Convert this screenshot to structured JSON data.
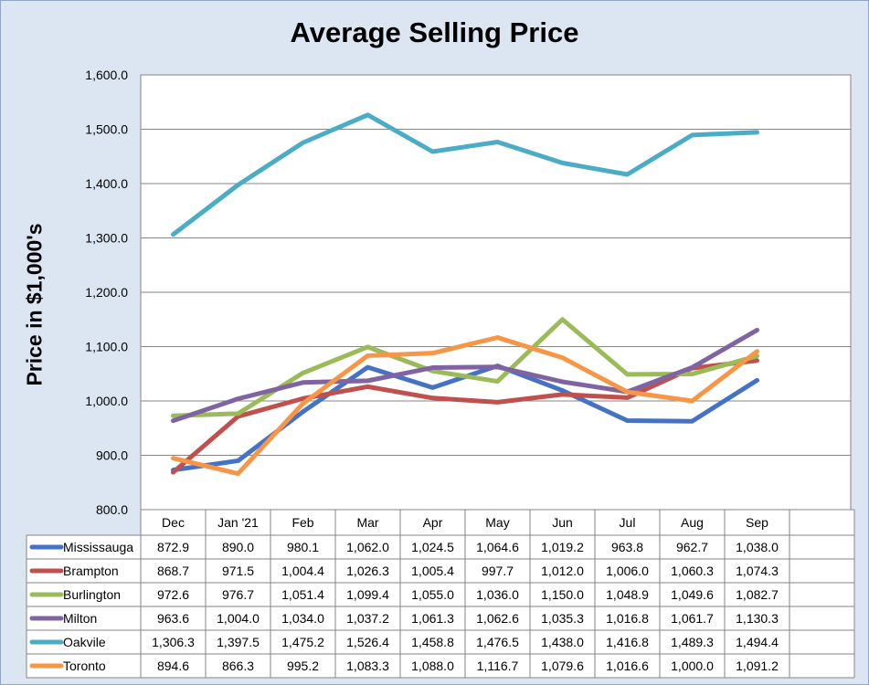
{
  "chart_data": {
    "type": "line",
    "title": "Average Selling Price",
    "ylabel": "Price in $1,000's",
    "xlabel": "",
    "ylim": [
      800,
      1600
    ],
    "y_ticks": [
      "800.0",
      "900.0",
      "1,000.0",
      "1,100.0",
      "1,200.0",
      "1,300.0",
      "1,400.0",
      "1,500.0",
      "1,600.0"
    ],
    "grid": true,
    "legend": "data-table",
    "categories": [
      "Dec",
      "Jan '21",
      "Feb",
      "Mar",
      "Apr",
      "May",
      "Jun",
      "Jul",
      "Aug",
      "Sep"
    ],
    "series": [
      {
        "name": "Mississauga",
        "color": "#4472c4",
        "values": [
          872.9,
          890.0,
          980.1,
          1062.0,
          1024.5,
          1064.6,
          1019.2,
          963.8,
          962.7,
          1038.0
        ],
        "labels": [
          "872.9",
          "890.0",
          "980.1",
          "1,062.0",
          "1,024.5",
          "1,064.6",
          "1,019.2",
          "963.8",
          "962.7",
          "1,038.0"
        ]
      },
      {
        "name": "Brampton",
        "color": "#c0504d",
        "values": [
          868.7,
          971.5,
          1004.4,
          1026.3,
          1005.4,
          997.7,
          1012.0,
          1006.0,
          1060.3,
          1074.3
        ],
        "labels": [
          "868.7",
          "971.5",
          "1,004.4",
          "1,026.3",
          "1,005.4",
          "997.7",
          "1,012.0",
          "1,006.0",
          "1,060.3",
          "1,074.3"
        ]
      },
      {
        "name": "Burlington",
        "color": "#9bbb59",
        "values": [
          972.6,
          976.7,
          1051.4,
          1099.4,
          1055.0,
          1036.0,
          1150.0,
          1048.9,
          1049.6,
          1082.7
        ],
        "labels": [
          "972.6",
          "976.7",
          "1,051.4",
          "1,099.4",
          "1,055.0",
          "1,036.0",
          "1,150.0",
          "1,048.9",
          "1,049.6",
          "1,082.7"
        ]
      },
      {
        "name": "Milton",
        "color": "#8064a2",
        "values": [
          963.6,
          1004.0,
          1034.0,
          1037.2,
          1061.3,
          1062.6,
          1035.3,
          1016.8,
          1061.7,
          1130.3
        ],
        "labels": [
          "963.6",
          "1,004.0",
          "1,034.0",
          "1,037.2",
          "1,061.3",
          "1,062.6",
          "1,035.3",
          "1,016.8",
          "1,061.7",
          "1,130.3"
        ]
      },
      {
        "name": "Oakvile",
        "color": "#4bacc6",
        "values": [
          1306.3,
          1397.5,
          1475.2,
          1526.4,
          1458.8,
          1476.5,
          1438.0,
          1416.8,
          1489.3,
          1494.4
        ],
        "labels": [
          "1,306.3",
          "1,397.5",
          "1,475.2",
          "1,526.4",
          "1,458.8",
          "1,476.5",
          "1,438.0",
          "1,416.8",
          "1,489.3",
          "1,494.4"
        ]
      },
      {
        "name": "Toronto",
        "color": "#f79646",
        "values": [
          894.6,
          866.3,
          995.2,
          1083.3,
          1088.0,
          1116.7,
          1079.6,
          1016.6,
          1000.0,
          1091.2
        ],
        "labels": [
          "894.6",
          "866.3",
          "995.2",
          "1,083.3",
          "1,088.0",
          "1,116.7",
          "1,079.6",
          "1,016.6",
          "1,000.0",
          "1,091.2"
        ]
      }
    ]
  }
}
